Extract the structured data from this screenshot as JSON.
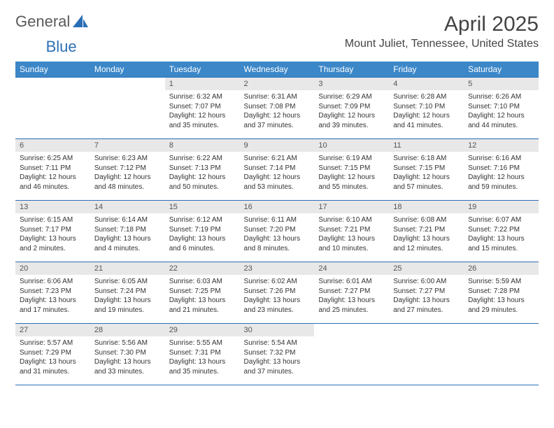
{
  "brand": {
    "part1": "General",
    "part2": "Blue"
  },
  "title": "April 2025",
  "location": "Mount Juliet, Tennessee, United States",
  "headerColor": "#3b87c8",
  "borderColor": "#2a6fb5",
  "dayNumBg": "#e8e8e8",
  "weekdays": [
    "Sunday",
    "Monday",
    "Tuesday",
    "Wednesday",
    "Thursday",
    "Friday",
    "Saturday"
  ],
  "weeks": [
    [
      null,
      null,
      {
        "n": "1",
        "sr": "6:32 AM",
        "ss": "7:07 PM",
        "dl": "12 hours and 35 minutes."
      },
      {
        "n": "2",
        "sr": "6:31 AM",
        "ss": "7:08 PM",
        "dl": "12 hours and 37 minutes."
      },
      {
        "n": "3",
        "sr": "6:29 AM",
        "ss": "7:09 PM",
        "dl": "12 hours and 39 minutes."
      },
      {
        "n": "4",
        "sr": "6:28 AM",
        "ss": "7:10 PM",
        "dl": "12 hours and 41 minutes."
      },
      {
        "n": "5",
        "sr": "6:26 AM",
        "ss": "7:10 PM",
        "dl": "12 hours and 44 minutes."
      }
    ],
    [
      {
        "n": "6",
        "sr": "6:25 AM",
        "ss": "7:11 PM",
        "dl": "12 hours and 46 minutes."
      },
      {
        "n": "7",
        "sr": "6:23 AM",
        "ss": "7:12 PM",
        "dl": "12 hours and 48 minutes."
      },
      {
        "n": "8",
        "sr": "6:22 AM",
        "ss": "7:13 PM",
        "dl": "12 hours and 50 minutes."
      },
      {
        "n": "9",
        "sr": "6:21 AM",
        "ss": "7:14 PM",
        "dl": "12 hours and 53 minutes."
      },
      {
        "n": "10",
        "sr": "6:19 AM",
        "ss": "7:15 PM",
        "dl": "12 hours and 55 minutes."
      },
      {
        "n": "11",
        "sr": "6:18 AM",
        "ss": "7:15 PM",
        "dl": "12 hours and 57 minutes."
      },
      {
        "n": "12",
        "sr": "6:16 AM",
        "ss": "7:16 PM",
        "dl": "12 hours and 59 minutes."
      }
    ],
    [
      {
        "n": "13",
        "sr": "6:15 AM",
        "ss": "7:17 PM",
        "dl": "13 hours and 2 minutes."
      },
      {
        "n": "14",
        "sr": "6:14 AM",
        "ss": "7:18 PM",
        "dl": "13 hours and 4 minutes."
      },
      {
        "n": "15",
        "sr": "6:12 AM",
        "ss": "7:19 PM",
        "dl": "13 hours and 6 minutes."
      },
      {
        "n": "16",
        "sr": "6:11 AM",
        "ss": "7:20 PM",
        "dl": "13 hours and 8 minutes."
      },
      {
        "n": "17",
        "sr": "6:10 AM",
        "ss": "7:21 PM",
        "dl": "13 hours and 10 minutes."
      },
      {
        "n": "18",
        "sr": "6:08 AM",
        "ss": "7:21 PM",
        "dl": "13 hours and 12 minutes."
      },
      {
        "n": "19",
        "sr": "6:07 AM",
        "ss": "7:22 PM",
        "dl": "13 hours and 15 minutes."
      }
    ],
    [
      {
        "n": "20",
        "sr": "6:06 AM",
        "ss": "7:23 PM",
        "dl": "13 hours and 17 minutes."
      },
      {
        "n": "21",
        "sr": "6:05 AM",
        "ss": "7:24 PM",
        "dl": "13 hours and 19 minutes."
      },
      {
        "n": "22",
        "sr": "6:03 AM",
        "ss": "7:25 PM",
        "dl": "13 hours and 21 minutes."
      },
      {
        "n": "23",
        "sr": "6:02 AM",
        "ss": "7:26 PM",
        "dl": "13 hours and 23 minutes."
      },
      {
        "n": "24",
        "sr": "6:01 AM",
        "ss": "7:27 PM",
        "dl": "13 hours and 25 minutes."
      },
      {
        "n": "25",
        "sr": "6:00 AM",
        "ss": "7:27 PM",
        "dl": "13 hours and 27 minutes."
      },
      {
        "n": "26",
        "sr": "5:59 AM",
        "ss": "7:28 PM",
        "dl": "13 hours and 29 minutes."
      }
    ],
    [
      {
        "n": "27",
        "sr": "5:57 AM",
        "ss": "7:29 PM",
        "dl": "13 hours and 31 minutes."
      },
      {
        "n": "28",
        "sr": "5:56 AM",
        "ss": "7:30 PM",
        "dl": "13 hours and 33 minutes."
      },
      {
        "n": "29",
        "sr": "5:55 AM",
        "ss": "7:31 PM",
        "dl": "13 hours and 35 minutes."
      },
      {
        "n": "30",
        "sr": "5:54 AM",
        "ss": "7:32 PM",
        "dl": "13 hours and 37 minutes."
      },
      null,
      null,
      null
    ]
  ],
  "labels": {
    "sunrise": "Sunrise:",
    "sunset": "Sunset:",
    "daylight": "Daylight:"
  }
}
